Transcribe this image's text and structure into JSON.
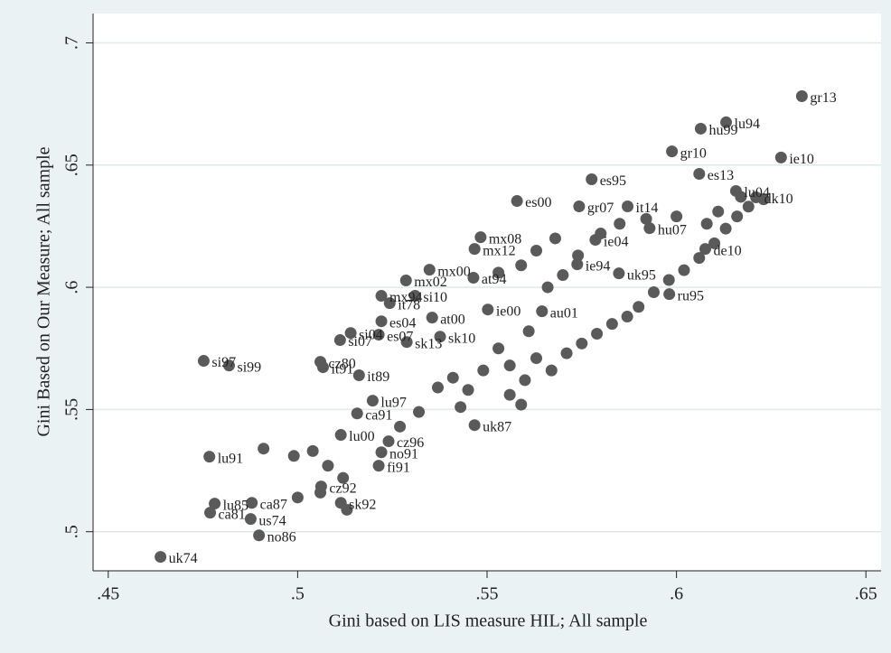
{
  "chart_data": {
    "type": "scatter",
    "x_label": "Gini based on LIS measure HIL; All sample",
    "y_label": "Gini Based on Our Measure; All sample",
    "xlim": [
      0.446,
      0.654
    ],
    "ylim": [
      0.484,
      0.712
    ],
    "xticks": [
      {
        "value": 0.45,
        "label": ".45"
      },
      {
        "value": 0.5,
        "label": ".5"
      },
      {
        "value": 0.55,
        "label": ".55"
      },
      {
        "value": 0.6,
        "label": ".6"
      },
      {
        "value": 0.65,
        "label": ".65"
      }
    ],
    "yticks": [
      {
        "value": 0.5,
        "label": ".5"
      },
      {
        "value": 0.55,
        "label": ".55"
      },
      {
        "value": 0.6,
        "label": ".6"
      },
      {
        "value": 0.65,
        "label": ".65"
      },
      {
        "value": 0.7,
        "label": ".7"
      }
    ],
    "grid": true,
    "color": "#5a5a5a",
    "x": [
      0.4638,
      0.6331,
      0.6131,
      0.6064,
      0.5988,
      0.6276,
      0.606,
      0.5776,
      0.5579,
      0.5743,
      0.5871,
      0.6157,
      0.621,
      0.5483,
      0.5467,
      0.5786,
      0.5929,
      0.6076,
      0.5348,
      0.5286,
      0.5464,
      0.531,
      0.5221,
      0.5738,
      0.5848,
      0.5502,
      0.5645,
      0.5981,
      0.5243,
      0.5355,
      0.5221,
      0.514,
      0.5214,
      0.5112,
      0.5288,
      0.5376,
      0.4752,
      0.4819,
      0.506,
      0.5067,
      0.5162,
      0.5198,
      0.5157,
      0.5467,
      0.5114,
      0.524,
      0.5221,
      0.5214,
      0.4767,
      0.5062,
      0.4781,
      0.4879,
      0.4769,
      0.4876,
      0.4898,
      0.5114,
      0.553,
      0.556,
      0.56,
      0.563,
      0.567,
      0.571,
      0.575,
      0.579,
      0.583,
      0.587,
      0.59,
      0.594,
      0.598,
      0.602,
      0.606,
      0.61,
      0.613,
      0.616,
      0.619,
      0.623,
      0.556,
      0.559,
      0.545,
      0.541,
      0.537,
      0.549,
      0.543,
      0.561,
      0.566,
      0.57,
      0.574,
      0.58,
      0.585,
      0.592,
      0.6,
      0.608,
      0.611,
      0.617,
      0.553,
      0.559,
      0.563,
      0.568,
      0.527,
      0.532,
      0.504,
      0.508,
      0.512,
      0.5,
      0.506,
      0.513,
      0.491,
      0.499
    ],
    "values": [
      0.4897,
      0.6782,
      0.6675,
      0.6649,
      0.6556,
      0.6531,
      0.6464,
      0.6442,
      0.6353,
      0.6331,
      0.6331,
      0.6394,
      0.6368,
      0.6205,
      0.6157,
      0.6194,
      0.6242,
      0.6157,
      0.6072,
      0.6028,
      0.6039,
      0.5965,
      0.5965,
      0.6094,
      0.6057,
      0.5909,
      0.5902,
      0.5972,
      0.5935,
      0.5876,
      0.5861,
      0.5813,
      0.5806,
      0.5784,
      0.5776,
      0.5798,
      0.5699,
      0.568,
      0.5695,
      0.5673,
      0.564,
      0.5536,
      0.5484,
      0.5436,
      0.5396,
      0.537,
      0.5325,
      0.527,
      0.5307,
      0.5185,
      0.5115,
      0.5118,
      0.5078,
      0.5052,
      0.4985,
      0.5118,
      0.575,
      0.568,
      0.562,
      0.571,
      0.566,
      0.573,
      0.577,
      0.581,
      0.585,
      0.588,
      0.592,
      0.598,
      0.603,
      0.607,
      0.612,
      0.618,
      0.624,
      0.629,
      0.633,
      0.636,
      0.556,
      0.552,
      0.558,
      0.563,
      0.559,
      0.566,
      0.551,
      0.582,
      0.6,
      0.605,
      0.613,
      0.622,
      0.626,
      0.628,
      0.629,
      0.626,
      0.631,
      0.637,
      0.606,
      0.609,
      0.615,
      0.62,
      0.543,
      0.549,
      0.533,
      0.527,
      0.522,
      0.514,
      0.516,
      0.509,
      0.534,
      0.531
    ],
    "labels": [
      "uk74",
      "gr13",
      "lu94",
      "hu99",
      "gr10",
      "ie10",
      "es13",
      "es95",
      "es00",
      "gr07",
      "it14",
      "lu04",
      "dk10",
      "mx08",
      "mx12",
      "ie04",
      "hu07",
      "de10",
      "mx00",
      "mx02",
      "at94",
      "si10",
      "mx94",
      "ie94",
      "uk95",
      "ie00",
      "au01",
      "ru95",
      "it78",
      "at00",
      "es04",
      "si04",
      "es07",
      "si07",
      "sk13",
      "sk10",
      "si97",
      "si99",
      "cz80",
      "it91",
      "it89",
      "lu97",
      "ca91",
      "uk87",
      "lu00",
      "cz96",
      "no91",
      "fi91",
      "lu91",
      "cz92",
      "lu85",
      "ca87",
      "ca81",
      "us74",
      "no86",
      "sk92",
      null,
      null,
      null,
      null,
      null,
      null,
      null,
      null,
      null,
      null,
      null,
      null,
      null,
      null,
      null,
      null,
      null,
      null,
      null,
      null,
      null,
      null,
      null,
      null,
      null,
      null,
      null,
      null,
      null,
      null,
      null,
      null,
      null,
      null,
      null,
      null,
      null,
      null,
      null,
      null,
      null,
      null,
      null,
      null,
      null,
      null,
      null,
      null,
      null,
      null,
      null,
      null
    ]
  }
}
